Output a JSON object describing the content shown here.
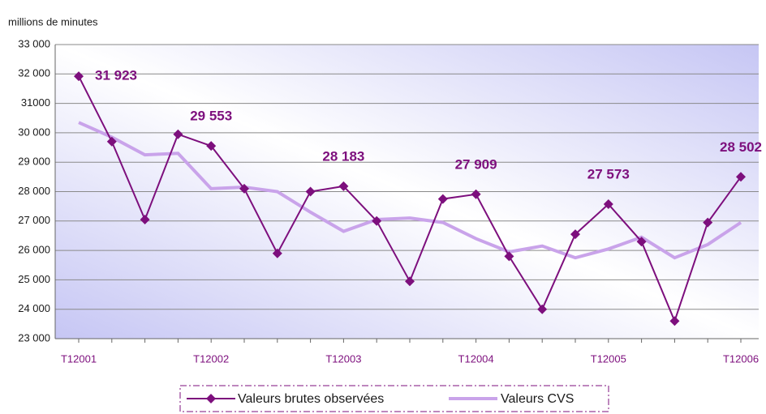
{
  "chart_data": {
    "type": "line",
    "y_axis_label": "millions de minutes",
    "categories": [
      "T12001",
      null,
      null,
      null,
      "T12002",
      null,
      null,
      null,
      "T12003",
      null,
      null,
      null,
      "T12004",
      null,
      null,
      null,
      "T12005",
      null,
      null,
      null,
      "T12006"
    ],
    "series": [
      {
        "name": "Valeurs brutes observées",
        "color": "#7d0f7d",
        "values": [
          31923,
          29700,
          27050,
          29950,
          29553,
          28100,
          25900,
          28000,
          28183,
          27000,
          24950,
          27750,
          27909,
          25800,
          24000,
          26550,
          27573,
          26300,
          23600,
          26950,
          28502
        ],
        "value_labels": [
          "31 923",
          null,
          null,
          null,
          "29 553",
          null,
          null,
          null,
          "28 183",
          null,
          null,
          null,
          "27 909",
          null,
          null,
          null,
          "27 573",
          null,
          null,
          null,
          "28 502"
        ]
      },
      {
        "name": "Valeurs CVS",
        "color": "#c9a3ea",
        "values": [
          30350,
          29850,
          29250,
          29300,
          28100,
          28150,
          28000,
          27300,
          26650,
          27050,
          27100,
          26950,
          26400,
          25950,
          26150,
          25750,
          26050,
          26450,
          25750,
          26200,
          26950
        ]
      }
    ],
    "ylim": [
      23000,
      33000
    ],
    "yticks": [
      {
        "value": 23000,
        "label": "23 000"
      },
      {
        "value": 24000,
        "label": "24 000"
      },
      {
        "value": 25000,
        "label": "25 000"
      },
      {
        "value": 26000,
        "label": "26 000"
      },
      {
        "value": 27000,
        "label": "27 000"
      },
      {
        "value": 28000,
        "label": "28 000"
      },
      {
        "value": 29000,
        "label": "29 000"
      },
      {
        "value": 30000,
        "label": "30 000"
      },
      31000,
      {
        "value": 32000,
        "label": "32 000"
      },
      {
        "value": 33000,
        "label": "33 000"
      }
    ],
    "grid": true
  }
}
